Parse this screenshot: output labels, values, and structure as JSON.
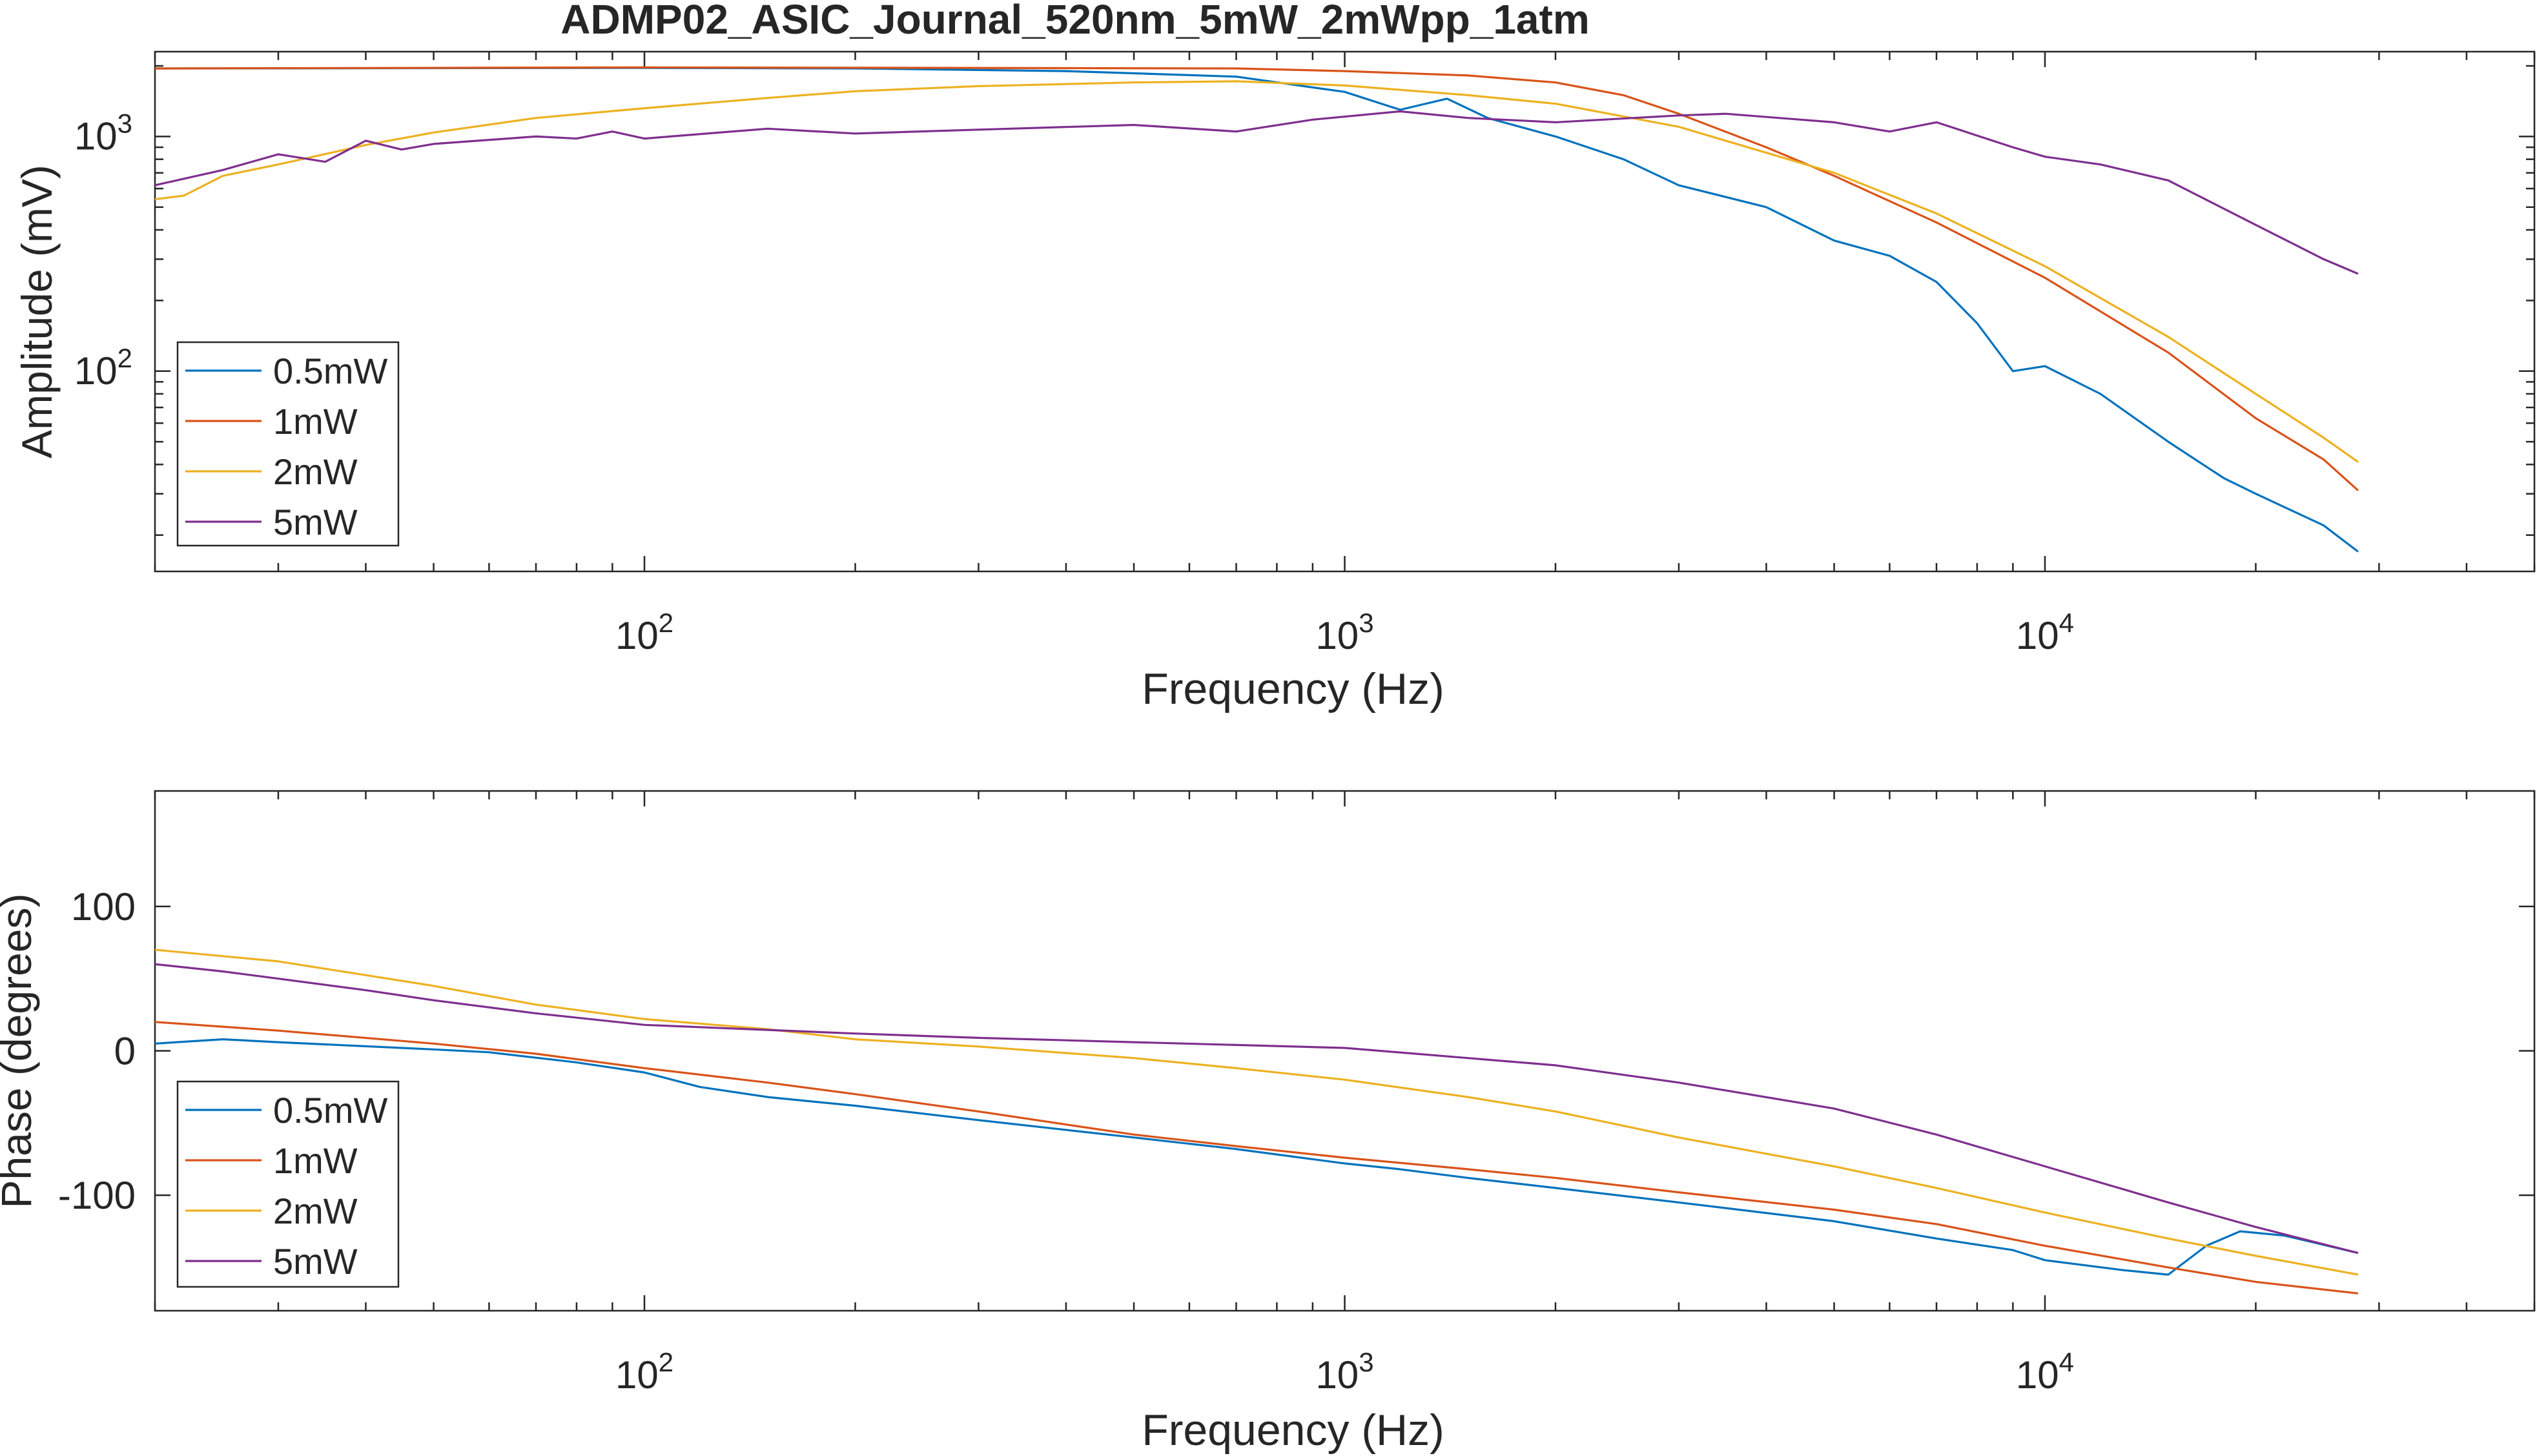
{
  "figure": {
    "title": "ADMP02_ASIC_Journal_520nm_5mW_2mWpp_1atm"
  },
  "chart_data": [
    {
      "type": "line",
      "title": "ADMP02_ASIC_Journal_520nm_5mW_2mWpp_1atm",
      "xlabel": "Frequency (Hz)",
      "ylabel": "Amplitude (mV)",
      "xscale": "log",
      "yscale": "log",
      "xlim": [
        20,
        50000
      ],
      "ylim": [
        14,
        2300
      ],
      "xticks": [
        {
          "value": 100,
          "base": "10",
          "exp": "2"
        },
        {
          "value": 1000,
          "base": "10",
          "exp": "3"
        },
        {
          "value": 10000,
          "base": "10",
          "exp": "4"
        }
      ],
      "yticks": [
        {
          "value": 100,
          "base": "10",
          "exp": "2"
        },
        {
          "value": 1000,
          "base": "10",
          "exp": "3"
        }
      ],
      "grid": false,
      "legend_position": "lower-left",
      "series": [
        {
          "name": "0.5mW",
          "color": "#0072BD",
          "points": [
            [
              20,
              1950
            ],
            [
              100,
              1960
            ],
            [
              200,
              1950
            ],
            [
              400,
              1900
            ],
            [
              700,
              1800
            ],
            [
              1000,
              1550
            ],
            [
              1200,
              1300
            ],
            [
              1400,
              1450
            ],
            [
              1600,
              1200
            ],
            [
              2000,
              1000
            ],
            [
              2500,
              800
            ],
            [
              3000,
              620
            ],
            [
              4000,
              500
            ],
            [
              5000,
              360
            ],
            [
              6000,
              310
            ],
            [
              7000,
              240
            ],
            [
              8000,
              160
            ],
            [
              9000,
              100
            ],
            [
              10000,
              105
            ],
            [
              12000,
              80
            ],
            [
              15000,
              50
            ],
            [
              18000,
              35
            ],
            [
              20000,
              30
            ],
            [
              25000,
              22
            ],
            [
              28000,
              17
            ]
          ]
        },
        {
          "name": "1mW",
          "color": "#D95319",
          "points": [
            [
              20,
              1950
            ],
            [
              100,
              1970
            ],
            [
              300,
              1960
            ],
            [
              700,
              1950
            ],
            [
              1000,
              1900
            ],
            [
              1500,
              1820
            ],
            [
              2000,
              1700
            ],
            [
              2500,
              1500
            ],
            [
              3000,
              1250
            ],
            [
              4000,
              900
            ],
            [
              5000,
              680
            ],
            [
              7000,
              430
            ],
            [
              10000,
              250
            ],
            [
              15000,
              120
            ],
            [
              20000,
              63
            ],
            [
              25000,
              42
            ],
            [
              28000,
              31
            ]
          ]
        },
        {
          "name": "2mW",
          "color": "#EDB120",
          "points": [
            [
              20,
              540
            ],
            [
              22,
              560
            ],
            [
              25,
              680
            ],
            [
              30,
              760
            ],
            [
              40,
              920
            ],
            [
              50,
              1040
            ],
            [
              70,
              1200
            ],
            [
              100,
              1320
            ],
            [
              150,
              1460
            ],
            [
              200,
              1560
            ],
            [
              300,
              1640
            ],
            [
              500,
              1700
            ],
            [
              700,
              1720
            ],
            [
              1000,
              1650
            ],
            [
              1500,
              1500
            ],
            [
              2000,
              1380
            ],
            [
              3000,
              1100
            ],
            [
              5000,
              700
            ],
            [
              7000,
              470
            ],
            [
              10000,
              280
            ],
            [
              15000,
              140
            ],
            [
              20000,
              80
            ],
            [
              25000,
              52
            ],
            [
              28000,
              41
            ]
          ]
        },
        {
          "name": "5mW",
          "color": "#7E2F8E",
          "points": [
            [
              20,
              620
            ],
            [
              25,
              720
            ],
            [
              30,
              840
            ],
            [
              35,
              780
            ],
            [
              40,
              960
            ],
            [
              45,
              880
            ],
            [
              50,
              930
            ],
            [
              70,
              1000
            ],
            [
              80,
              980
            ],
            [
              90,
              1050
            ],
            [
              100,
              980
            ],
            [
              150,
              1080
            ],
            [
              200,
              1030
            ],
            [
              300,
              1070
            ],
            [
              500,
              1120
            ],
            [
              700,
              1050
            ],
            [
              900,
              1180
            ],
            [
              1200,
              1280
            ],
            [
              1500,
              1200
            ],
            [
              2000,
              1150
            ],
            [
              3000,
              1230
            ],
            [
              3500,
              1250
            ],
            [
              5000,
              1150
            ],
            [
              6000,
              1050
            ],
            [
              7000,
              1150
            ],
            [
              9000,
              900
            ],
            [
              10000,
              820
            ],
            [
              12000,
              760
            ],
            [
              15000,
              650
            ],
            [
              20000,
              420
            ],
            [
              25000,
              300
            ],
            [
              28000,
              260
            ]
          ]
        }
      ]
    },
    {
      "type": "line",
      "title": "",
      "xlabel": "Frequency (Hz)",
      "ylabel": "Phase (degrees)",
      "xscale": "log",
      "yscale": "linear",
      "xlim": [
        20,
        50000
      ],
      "ylim": [
        -180,
        180
      ],
      "xticks": [
        {
          "value": 100,
          "base": "10",
          "exp": "2"
        },
        {
          "value": 1000,
          "base": "10",
          "exp": "3"
        },
        {
          "value": 10000,
          "base": "10",
          "exp": "4"
        }
      ],
      "yticks": [
        {
          "value": 100,
          "label": "100"
        },
        {
          "value": 0,
          "label": "0"
        },
        {
          "value": -100,
          "label": "-100"
        }
      ],
      "grid": false,
      "legend_position": "lower-left",
      "series": [
        {
          "name": "0.5mW",
          "color": "#0072BD",
          "points": [
            [
              20,
              5
            ],
            [
              25,
              8
            ],
            [
              30,
              6
            ],
            [
              50,
              1
            ],
            [
              60,
              -1
            ],
            [
              80,
              -8
            ],
            [
              100,
              -15
            ],
            [
              120,
              -25
            ],
            [
              150,
              -32
            ],
            [
              200,
              -38
            ],
            [
              300,
              -48
            ],
            [
              500,
              -60
            ],
            [
              700,
              -68
            ],
            [
              1000,
              -78
            ],
            [
              1200,
              -82
            ],
            [
              1500,
              -88
            ],
            [
              2000,
              -95
            ],
            [
              3000,
              -105
            ],
            [
              5000,
              -118
            ],
            [
              7000,
              -130
            ],
            [
              9000,
              -138
            ],
            [
              10000,
              -145
            ],
            [
              13000,
              -152
            ],
            [
              15000,
              -155
            ],
            [
              17000,
              -135
            ],
            [
              19000,
              -125
            ],
            [
              22000,
              -128
            ],
            [
              28000,
              -140
            ]
          ]
        },
        {
          "name": "1mW",
          "color": "#D95319",
          "points": [
            [
              20,
              20
            ],
            [
              30,
              14
            ],
            [
              50,
              5
            ],
            [
              70,
              -2
            ],
            [
              100,
              -12
            ],
            [
              150,
              -22
            ],
            [
              200,
              -30
            ],
            [
              300,
              -42
            ],
            [
              500,
              -58
            ],
            [
              700,
              -66
            ],
            [
              1000,
              -74
            ],
            [
              1500,
              -82
            ],
            [
              2000,
              -88
            ],
            [
              3000,
              -98
            ],
            [
              5000,
              -110
            ],
            [
              7000,
              -120
            ],
            [
              10000,
              -135
            ],
            [
              15000,
              -150
            ],
            [
              20000,
              -160
            ],
            [
              28000,
              -168
            ]
          ]
        },
        {
          "name": "2mW",
          "color": "#EDB120",
          "points": [
            [
              20,
              70
            ],
            [
              30,
              62
            ],
            [
              50,
              45
            ],
            [
              70,
              32
            ],
            [
              100,
              22
            ],
            [
              150,
              15
            ],
            [
              200,
              8
            ],
            [
              300,
              3
            ],
            [
              500,
              -5
            ],
            [
              700,
              -12
            ],
            [
              1000,
              -20
            ],
            [
              1500,
              -32
            ],
            [
              2000,
              -42
            ],
            [
              3000,
              -60
            ],
            [
              5000,
              -80
            ],
            [
              7000,
              -95
            ],
            [
              10000,
              -112
            ],
            [
              15000,
              -130
            ],
            [
              20000,
              -142
            ],
            [
              28000,
              -155
            ]
          ]
        },
        {
          "name": "5mW",
          "color": "#7E2F8E",
          "points": [
            [
              20,
              60
            ],
            [
              25,
              55
            ],
            [
              30,
              50
            ],
            [
              40,
              42
            ],
            [
              50,
              35
            ],
            [
              70,
              26
            ],
            [
              100,
              18
            ],
            [
              200,
              12
            ],
            [
              300,
              9
            ],
            [
              500,
              6
            ],
            [
              1000,
              2
            ],
            [
              1500,
              -5
            ],
            [
              2000,
              -10
            ],
            [
              3000,
              -22
            ],
            [
              5000,
              -40
            ],
            [
              7000,
              -58
            ],
            [
              10000,
              -80
            ],
            [
              15000,
              -105
            ],
            [
              20000,
              -122
            ],
            [
              28000,
              -140
            ]
          ]
        }
      ]
    }
  ]
}
